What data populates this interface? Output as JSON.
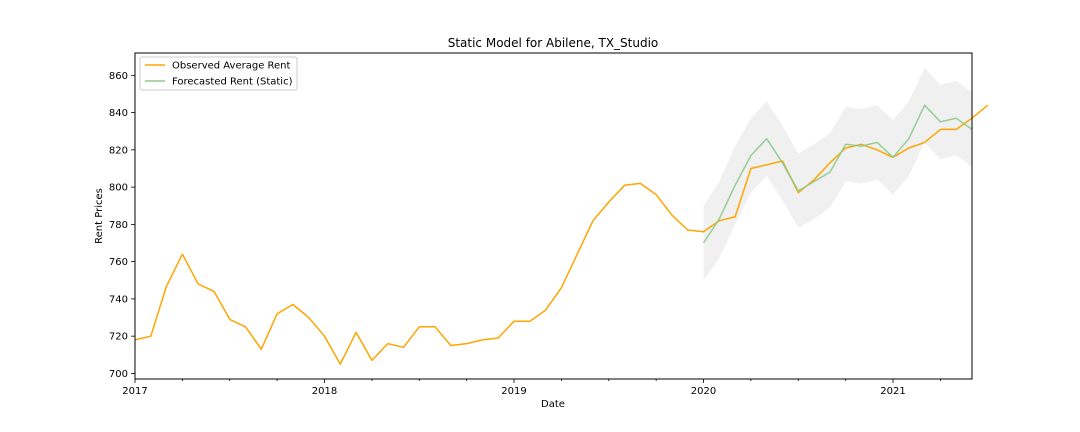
{
  "chart_data": {
    "type": "line",
    "title": "Static Model for Abilene, TX_Studio",
    "xlabel": "Date",
    "ylabel": "Rent Prices",
    "xlim": [
      2017.0,
      2021.4167
    ],
    "ylim": [
      697,
      872
    ],
    "x_ticks": [
      {
        "value": 2017,
        "label": "2017"
      },
      {
        "value": 2018,
        "label": "2018"
      },
      {
        "value": 2019,
        "label": "2019"
      },
      {
        "value": 2020,
        "label": "2020"
      },
      {
        "value": 2021,
        "label": "2021"
      }
    ],
    "y_ticks": [
      700,
      720,
      740,
      760,
      780,
      800,
      820,
      840,
      860
    ],
    "legend_position": "top-left",
    "series": [
      {
        "name": "Observed Average Rent",
        "color": "#FFA500",
        "start": 2017.0,
        "step_months": 1,
        "values": [
          718,
          720,
          747,
          764,
          748,
          744,
          729,
          725,
          713,
          732,
          737,
          730,
          720,
          705,
          722,
          707,
          716,
          714,
          725,
          725,
          715,
          716,
          718,
          719,
          728,
          728,
          734,
          746,
          764,
          782,
          792,
          801,
          802,
          796,
          785,
          777,
          776,
          782,
          784,
          810,
          812,
          814,
          797,
          804,
          813,
          821,
          823,
          820,
          816,
          821,
          824,
          831,
          831,
          837,
          844
        ]
      },
      {
        "name": "Forecasted Rent (Static)",
        "color": "#8DC98D",
        "start": 2020.0,
        "step_months": 1,
        "values": [
          770,
          783,
          801,
          817,
          826,
          813,
          798,
          803,
          808,
          823,
          822,
          824,
          816,
          826,
          844,
          835,
          837,
          831
        ]
      }
    ],
    "confidence_band": {
      "start": 2020.0,
      "step_months": 1,
      "color": "#D3D3D3",
      "lower": [
        750,
        762,
        780,
        797,
        806,
        793,
        778,
        783,
        789,
        803,
        802,
        804,
        796,
        806,
        824,
        815,
        817,
        811
      ],
      "upper": [
        790,
        803,
        822,
        837,
        846,
        833,
        818,
        823,
        829,
        843,
        842,
        844,
        836,
        846,
        864,
        855,
        857,
        851
      ]
    }
  }
}
